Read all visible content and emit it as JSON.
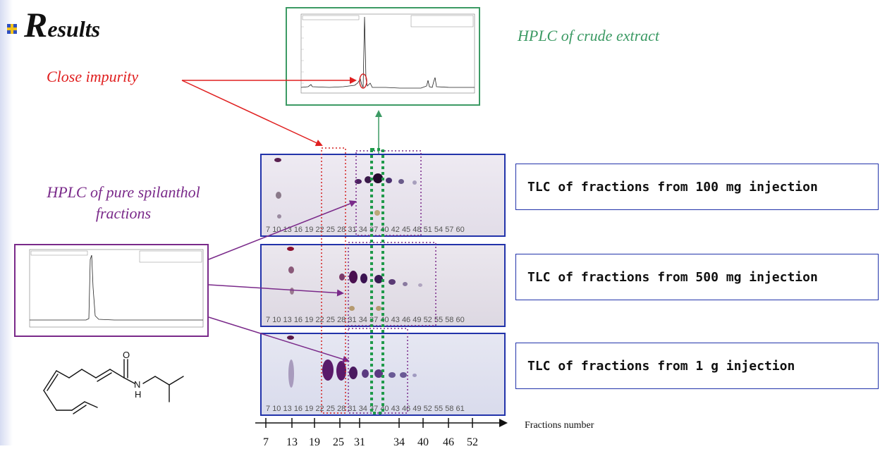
{
  "title": {
    "initial": "R",
    "rest": "esults"
  },
  "captions": {
    "close_impurity": "Close impurity",
    "hplc_crude": "HPLC of crude extract",
    "hplc_pure_line1": "HPLC of pure spilanthol",
    "hplc_pure_line2": "fractions"
  },
  "tlc": [
    {
      "label": "TLC of fractions from 100 mg injection",
      "lane_labels": [
        "7",
        "10",
        "13",
        "16",
        "19",
        "22",
        "25",
        "28",
        "31",
        "34",
        "37",
        "40",
        "42",
        "45",
        "48",
        "51",
        "54",
        "57",
        "60"
      ]
    },
    {
      "label": "TLC of fractions from 500 mg injection",
      "lane_labels": [
        "7",
        "10",
        "13",
        "16",
        "19",
        "22",
        "25",
        "28",
        "31",
        "34",
        "37",
        "40",
        "43",
        "46",
        "49",
        "52",
        "55",
        "58",
        "60"
      ]
    },
    {
      "label": "TLC of fractions from 1 g injection",
      "lane_labels": [
        "7",
        "10",
        "13",
        "16",
        "19",
        "22",
        "25",
        "28",
        "31",
        "34",
        "37",
        "40",
        "43",
        "46",
        "49",
        "52",
        "55",
        "58",
        "61"
      ]
    }
  ],
  "axis": {
    "title": "Fractions number",
    "ticks": [
      "7",
      "13",
      "19",
      "25",
      "31",
      "34",
      "40",
      "46",
      "52"
    ]
  },
  "molecule": {
    "atom_o": "O",
    "atom_n": "N",
    "atom_h": "H"
  },
  "colors": {
    "impurity": "#e02020",
    "crude": "#3c9a64",
    "pure": "#7a2a8a",
    "frame": "#2233aa"
  }
}
